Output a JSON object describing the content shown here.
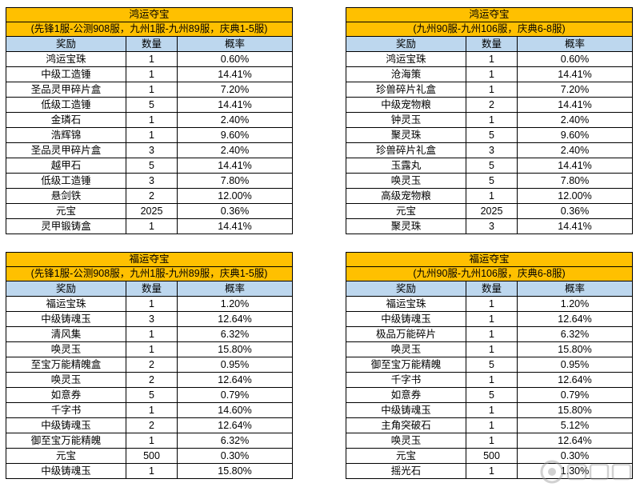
{
  "tables": [
    {
      "title": "鸿运夺宝",
      "subtitle": "(先锋1服-公测908服，九州1服-九州89服，庆典1-5服)",
      "headers": [
        "奖励",
        "数量",
        "概率"
      ],
      "rows": [
        [
          "鸿运宝珠",
          "1",
          "0.60%"
        ],
        [
          "中级工造锤",
          "1",
          "14.41%"
        ],
        [
          "圣品灵甲碎片盒",
          "1",
          "7.20%"
        ],
        [
          "低级工造锤",
          "5",
          "14.41%"
        ],
        [
          "金璘石",
          "1",
          "2.40%"
        ],
        [
          "浩辉锦",
          "1",
          "9.60%"
        ],
        [
          "圣品灵甲碎片盒",
          "3",
          "2.40%"
        ],
        [
          "越甲石",
          "5",
          "14.41%"
        ],
        [
          "低级工造锤",
          "3",
          "7.80%"
        ],
        [
          "悬剑铁",
          "2",
          "12.00%"
        ],
        [
          "元宝",
          "2025",
          "0.36%"
        ],
        [
          "灵甲锻铸盒",
          "1",
          "14.41%"
        ]
      ]
    },
    {
      "title": "鸿运夺宝",
      "subtitle": "(九州90服-九州106服，庆典6-8服)",
      "headers": [
        "奖励",
        "数量",
        "概率"
      ],
      "rows": [
        [
          "鸿运宝珠",
          "1",
          "0.60%"
        ],
        [
          "沧海策",
          "1",
          "14.41%"
        ],
        [
          "珍兽碎片礼盒",
          "1",
          "7.20%"
        ],
        [
          "中级宠物粮",
          "2",
          "14.41%"
        ],
        [
          "钟灵玉",
          "1",
          "2.40%"
        ],
        [
          "聚灵珠",
          "5",
          "9.60%"
        ],
        [
          "珍兽碎片礼盒",
          "3",
          "2.40%"
        ],
        [
          "玉露丸",
          "5",
          "14.41%"
        ],
        [
          "唤灵玉",
          "5",
          "7.80%"
        ],
        [
          "高级宠物粮",
          "1",
          "12.00%"
        ],
        [
          "元宝",
          "2025",
          "0.36%"
        ],
        [
          "聚灵珠",
          "3",
          "14.41%"
        ]
      ]
    },
    {
      "title": "福运夺宝",
      "subtitle": "(先锋1服-公测908服，九州1服-九州89服，庆典1-5服)",
      "headers": [
        "奖励",
        "数量",
        "概率"
      ],
      "rows": [
        [
          "福运宝珠",
          "1",
          "1.20%"
        ],
        [
          "中级铸魂玉",
          "3",
          "12.64%"
        ],
        [
          "清风集",
          "1",
          "6.32%"
        ],
        [
          "唤灵玉",
          "1",
          "15.80%"
        ],
        [
          "至宝万能精魄盒",
          "2",
          "0.95%"
        ],
        [
          "唤灵玉",
          "2",
          "12.64%"
        ],
        [
          "如意券",
          "5",
          "0.79%"
        ],
        [
          "千字书",
          "1",
          "14.60%"
        ],
        [
          "中级铸魂玉",
          "2",
          "12.64%"
        ],
        [
          "御至宝万能精魄",
          "1",
          "6.32%"
        ],
        [
          "元宝",
          "500",
          "0.30%"
        ],
        [
          "中级铸魂玉",
          "1",
          "15.80%"
        ]
      ]
    },
    {
      "title": "福运夺宝",
      "subtitle": "(九州90服-九州106服，庆典6-8服)",
      "headers": [
        "奖励",
        "数量",
        "概率"
      ],
      "rows": [
        [
          "福运宝珠",
          "1",
          "1.20%"
        ],
        [
          "中级铸魂玉",
          "1",
          "12.64%"
        ],
        [
          "极品万能碎片",
          "1",
          "6.32%"
        ],
        [
          "唤灵玉",
          "1",
          "15.80%"
        ],
        [
          "御至宝万能精魄",
          "5",
          "0.95%"
        ],
        [
          "千字书",
          "1",
          "12.64%"
        ],
        [
          "如意券",
          "5",
          "0.79%"
        ],
        [
          "中级铸魂玉",
          "1",
          "15.80%"
        ],
        [
          "主角突破石",
          "1",
          "5.12%"
        ],
        [
          "唤灵玉",
          "1",
          "12.64%"
        ],
        [
          "元宝",
          "500",
          "0.30%"
        ],
        [
          "摇光石",
          "1",
          "1.30%"
        ]
      ]
    }
  ],
  "watermark": {
    "icon": "game-site-logo-icon"
  }
}
